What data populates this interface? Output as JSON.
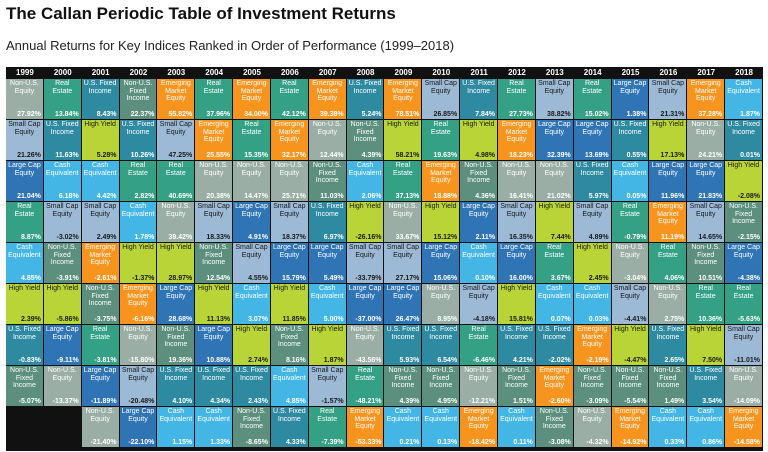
{
  "header": {
    "title": "The Callan Periodic Table of Investment Returns",
    "subtitle": "Annual Returns for Key Indices Ranked in Order of Performance (1999–2018)"
  },
  "table": {
    "columns": [
      {
        "year": "1999",
        "cells": [
          [
            "Non-U.S. Equity",
            "27.92%",
            "#9aaea6"
          ],
          [
            "Small Cap Equity",
            "21.26%",
            "#9cbad6"
          ],
          [
            "Large Cap Equity",
            "21.04%",
            "#2f74b5"
          ],
          [
            "Real Estate",
            "8.87%",
            "#34a184"
          ],
          [
            "Cash Equivalent",
            "4.85%",
            "#43b6e6"
          ],
          [
            "High Yield",
            "2.39%",
            "#b9d437"
          ],
          [
            "U.S. Fixed Income",
            "-0.83%",
            "#2e8aa0"
          ],
          [
            "Non-U.S. Fixed Income",
            "-5.07%",
            "#5c8f7e"
          ],
          null
        ]
      },
      {
        "year": "2000",
        "cells": [
          [
            "Real Estate",
            "13.84%",
            "#34a184"
          ],
          [
            "U.S. Fixed Income",
            "11.63%",
            "#2e8aa0"
          ],
          [
            "Cash Equivalent",
            "6.18%",
            "#43b6e6"
          ],
          [
            "Small Cap Equity",
            "-3.02%",
            "#9cbad6"
          ],
          [
            "Non-U.S. Fixed Income",
            "-3.91%",
            "#5c8f7e"
          ],
          [
            "High Yield",
            "-5.86%",
            "#b9d437"
          ],
          [
            "Large Cap Equity",
            "-9.11%",
            "#2f74b5"
          ],
          [
            "Non-U.S. Equity",
            "-13.37%",
            "#9aaea6"
          ],
          null
        ]
      },
      {
        "year": "2001",
        "cells": [
          [
            "U.S. Fixed Income",
            "8.43%",
            "#2e8aa0"
          ],
          [
            "High Yield",
            "5.28%",
            "#b9d437"
          ],
          [
            "Cash Equivalent",
            "4.42%",
            "#43b6e6"
          ],
          [
            "Small Cap Equity",
            "2.49%",
            "#9cbad6"
          ],
          [
            "Emerging Market Equity",
            "-2.61%",
            "#f7941e"
          ],
          [
            "Non-U.S. Fixed Income",
            "-3.75%",
            "#5c8f7e"
          ],
          [
            "Real Estate",
            "-3.81%",
            "#34a184"
          ],
          [
            "Large Cap Equity",
            "-11.89%",
            "#2f74b5"
          ],
          [
            "Non-U.S. Equity",
            "-21.40%",
            "#9aaea6"
          ]
        ]
      },
      {
        "year": "2002",
        "cells": [
          [
            "Non-U.S. Fixed Income",
            "22.37%",
            "#5c8f7e"
          ],
          [
            "U.S. Fixed Income",
            "10.26%",
            "#2e8aa0"
          ],
          [
            "Real Estate",
            "2.82%",
            "#34a184"
          ],
          [
            "Cash Equivalent",
            "1.78%",
            "#43b6e6"
          ],
          [
            "High Yield",
            "-1.37%",
            "#b9d437"
          ],
          [
            "Emerging Market Equity",
            "-6.16%",
            "#f7941e"
          ],
          [
            "Non-U.S. Equity",
            "-15.80%",
            "#9aaea6"
          ],
          [
            "Small Cap Equity",
            "-20.48%",
            "#9cbad6"
          ],
          [
            "Large Cap Equity",
            "-22.10%",
            "#2f74b5"
          ]
        ]
      },
      {
        "year": "2003",
        "cells": [
          [
            "Emerging Market Equity",
            "55.82%",
            "#f7941e"
          ],
          [
            "Small Cap Equity",
            "47.25%",
            "#9cbad6"
          ],
          [
            "Real Estate",
            "40.69%",
            "#34a184"
          ],
          [
            "Non-U.S. Equity",
            "39.42%",
            "#9aaea6"
          ],
          [
            "High Yield",
            "28.97%",
            "#b9d437"
          ],
          [
            "Large Cap Equity",
            "28.68%",
            "#2f74b5"
          ],
          [
            "Non-U.S. Fixed Income",
            "19.36%",
            "#5c8f7e"
          ],
          [
            "U.S. Fixed Income",
            "4.10%",
            "#2e8aa0"
          ],
          [
            "Cash Equivalent",
            "1.15%",
            "#43b6e6"
          ]
        ]
      },
      {
        "year": "2004",
        "cells": [
          [
            "Real Estate",
            "37.96%",
            "#34a184"
          ],
          [
            "Emerging Market Equity",
            "25.55%",
            "#f7941e"
          ],
          [
            "Non-U.S. Equity",
            "20.38%",
            "#9aaea6"
          ],
          [
            "Small Cap Equity",
            "18.33%",
            "#9cbad6"
          ],
          [
            "Non-U.S. Fixed Income",
            "12.54%",
            "#5c8f7e"
          ],
          [
            "High Yield",
            "11.13%",
            "#b9d437"
          ],
          [
            "Large Cap Equity",
            "10.88%",
            "#2f74b5"
          ],
          [
            "U.S. Fixed Income",
            "4.34%",
            "#2e8aa0"
          ],
          [
            "Cash Equivalent",
            "1.33%",
            "#43b6e6"
          ]
        ]
      },
      {
        "year": "2005",
        "cells": [
          [
            "Emerging Market Equity",
            "34.00%",
            "#f7941e"
          ],
          [
            "Real Estate",
            "15.35%",
            "#34a184"
          ],
          [
            "Non-U.S. Equity",
            "14.47%",
            "#9aaea6"
          ],
          [
            "Large Cap Equity",
            "4.91%",
            "#2f74b5"
          ],
          [
            "Small Cap Equity",
            "4.55%",
            "#9cbad6"
          ],
          [
            "Cash Equivalent",
            "3.07%",
            "#43b6e6"
          ],
          [
            "High Yield",
            "2.74%",
            "#b9d437"
          ],
          [
            "U.S. Fixed Income",
            "2.43%",
            "#2e8aa0"
          ],
          [
            "Non-U.S. Fixed Income",
            "-8.65%",
            "#5c8f7e"
          ]
        ]
      },
      {
        "year": "2006",
        "cells": [
          [
            "Real Estate",
            "42.12%",
            "#34a184"
          ],
          [
            "Emerging Market Equity",
            "32.17%",
            "#f7941e"
          ],
          [
            "Non-U.S. Equity",
            "25.71%",
            "#9aaea6"
          ],
          [
            "Small Cap Equity",
            "18.37%",
            "#9cbad6"
          ],
          [
            "Large Cap Equity",
            "15.79%",
            "#2f74b5"
          ],
          [
            "High Yield",
            "11.85%",
            "#b9d437"
          ],
          [
            "Non-U.S. Fixed Income",
            "8.16%",
            "#5c8f7e"
          ],
          [
            "Cash Equivalent",
            "4.85%",
            "#43b6e6"
          ],
          [
            "U.S. Fixed Income",
            "4.33%",
            "#2e8aa0"
          ]
        ]
      },
      {
        "year": "2007",
        "cells": [
          [
            "Emerging Market Equity",
            "39.38%",
            "#f7941e"
          ],
          [
            "Non-U.S. Equity",
            "12.44%",
            "#9aaea6"
          ],
          [
            "Non-U.S. Fixed Income",
            "11.03%",
            "#5c8f7e"
          ],
          [
            "U.S. Fixed Income",
            "6.97%",
            "#2e8aa0"
          ],
          [
            "Large Cap Equity",
            "5.49%",
            "#2f74b5"
          ],
          [
            "Cash Equivalent",
            "5.00%",
            "#43b6e6"
          ],
          [
            "High Yield",
            "1.87%",
            "#b9d437"
          ],
          [
            "Small Cap Equity",
            "-1.57%",
            "#9cbad6"
          ],
          [
            "Real Estate",
            "-7.39%",
            "#34a184"
          ]
        ]
      },
      {
        "year": "2008",
        "cells": [
          [
            "U.S. Fixed Income",
            "5.24%",
            "#2e8aa0"
          ],
          [
            "Non-U.S. Fixed Income",
            "4.39%",
            "#5c8f7e"
          ],
          [
            "Cash Equivalent",
            "2.06%",
            "#43b6e6"
          ],
          [
            "High Yield",
            "-26.16%",
            "#b9d437"
          ],
          [
            "Small Cap Equity",
            "-33.79%",
            "#9cbad6"
          ],
          [
            "Large Cap Equity",
            "-37.00%",
            "#2f74b5"
          ],
          [
            "Non-U.S. Equity",
            "-43.56%",
            "#9aaea6"
          ],
          [
            "Real Estate",
            "-48.21%",
            "#34a184"
          ],
          [
            "Emerging Market Equity",
            "-53.33%",
            "#f7941e"
          ]
        ]
      },
      {
        "year": "2009",
        "cells": [
          [
            "Emerging Market Equity",
            "78.51%",
            "#f7941e"
          ],
          [
            "High Yield",
            "58.21%",
            "#b9d437"
          ],
          [
            "Real Estate",
            "37.13%",
            "#34a184"
          ],
          [
            "Non-U.S. Equity",
            "33.67%",
            "#9aaea6"
          ],
          [
            "Small Cap Equity",
            "27.17%",
            "#9cbad6"
          ],
          [
            "Large Cap Equity",
            "26.47%",
            "#2f74b5"
          ],
          [
            "U.S. Fixed Income",
            "5.93%",
            "#2e8aa0"
          ],
          [
            "Non-U.S. Fixed Income",
            "4.39%",
            "#5c8f7e"
          ],
          [
            "Cash Equivalent",
            "0.21%",
            "#43b6e6"
          ]
        ]
      },
      {
        "year": "2010",
        "cells": [
          [
            "Small Cap Equity",
            "26.85%",
            "#9cbad6"
          ],
          [
            "Real Estate",
            "19.63%",
            "#34a184"
          ],
          [
            "Emerging Market Equity",
            "18.88%",
            "#f7941e"
          ],
          [
            "High Yield",
            "15.12%",
            "#b9d437"
          ],
          [
            "Large Cap Equity",
            "15.06%",
            "#2f74b5"
          ],
          [
            "Non-U.S. Equity",
            "8.95%",
            "#9aaea6"
          ],
          [
            "U.S. Fixed Income",
            "6.54%",
            "#2e8aa0"
          ],
          [
            "Non-U.S. Fixed Income",
            "4.95%",
            "#5c8f7e"
          ],
          [
            "Cash Equivalent",
            "0.13%",
            "#43b6e6"
          ]
        ]
      },
      {
        "year": "2011",
        "cells": [
          [
            "U.S. Fixed Income",
            "7.84%",
            "#2e8aa0"
          ],
          [
            "High Yield",
            "4.98%",
            "#b9d437"
          ],
          [
            "Non-U.S. Fixed Income",
            "4.36%",
            "#5c8f7e"
          ],
          [
            "Large Cap Equity",
            "2.11%",
            "#2f74b5"
          ],
          [
            "Cash Equivalent",
            "0.10%",
            "#43b6e6"
          ],
          [
            "Small Cap Equity",
            "-4.18%",
            "#9cbad6"
          ],
          [
            "Real Estate",
            "-6.46%",
            "#34a184"
          ],
          [
            "Non-U.S. Equity",
            "-12.21%",
            "#9aaea6"
          ],
          [
            "Emerging Market Equity",
            "-18.42%",
            "#f7941e"
          ]
        ]
      },
      {
        "year": "2012",
        "cells": [
          [
            "Real Estate",
            "27.73%",
            "#34a184"
          ],
          [
            "Emerging Market Equity",
            "18.23%",
            "#f7941e"
          ],
          [
            "Non-U.S. Equity",
            "16.41%",
            "#9aaea6"
          ],
          [
            "Small Cap Equity",
            "16.35%",
            "#9cbad6"
          ],
          [
            "Large Cap Equity",
            "16.00%",
            "#2f74b5"
          ],
          [
            "High Yield",
            "15.81%",
            "#b9d437"
          ],
          [
            "U.S. Fixed Income",
            "4.21%",
            "#2e8aa0"
          ],
          [
            "Non-U.S. Fixed Income",
            "1.51%",
            "#5c8f7e"
          ],
          [
            "Cash Equivalent",
            "0.11%",
            "#43b6e6"
          ]
        ]
      },
      {
        "year": "2013",
        "cells": [
          [
            "Small Cap Equity",
            "38.82%",
            "#9cbad6"
          ],
          [
            "Large Cap Equity",
            "32.39%",
            "#2f74b5"
          ],
          [
            "Non-U.S. Equity",
            "21.02%",
            "#9aaea6"
          ],
          [
            "High Yield",
            "7.44%",
            "#b9d437"
          ],
          [
            "Real Estate",
            "3.67%",
            "#34a184"
          ],
          [
            "Cash Equivalent",
            "0.07%",
            "#43b6e6"
          ],
          [
            "U.S. Fixed Income",
            "-2.02%",
            "#2e8aa0"
          ],
          [
            "Emerging Market Equity",
            "-2.60%",
            "#f7941e"
          ],
          [
            "Non-U.S. Fixed Income",
            "-3.08%",
            "#5c8f7e"
          ]
        ]
      },
      {
        "year": "2014",
        "cells": [
          [
            "Real Estate",
            "15.02%",
            "#34a184"
          ],
          [
            "Large Cap Equity",
            "13.69%",
            "#2f74b5"
          ],
          [
            "U.S. Fixed Income",
            "5.97%",
            "#2e8aa0"
          ],
          [
            "Small Cap Equity",
            "4.89%",
            "#9cbad6"
          ],
          [
            "High Yield",
            "2.45%",
            "#b9d437"
          ],
          [
            "Cash Equivalent",
            "0.03%",
            "#43b6e6"
          ],
          [
            "Emerging Market Equity",
            "-2.19%",
            "#f7941e"
          ],
          [
            "Non-U.S. Fixed Income",
            "-3.09%",
            "#5c8f7e"
          ],
          [
            "Non-U.S. Equity",
            "-4.32%",
            "#9aaea6"
          ]
        ]
      },
      {
        "year": "2015",
        "cells": [
          [
            "Large Cap Equity",
            "1.38%",
            "#2f74b5"
          ],
          [
            "U.S. Fixed Income",
            "0.55%",
            "#2e8aa0"
          ],
          [
            "Cash Equivalent",
            "0.05%",
            "#43b6e6"
          ],
          [
            "Real Estate",
            "-0.79%",
            "#34a184"
          ],
          [
            "Non-U.S. Equity",
            "-3.04%",
            "#9aaea6"
          ],
          [
            "Small Cap Equity",
            "-4.41%",
            "#9cbad6"
          ],
          [
            "High Yield",
            "-4.47%",
            "#b9d437"
          ],
          [
            "Non-U.S. Fixed Income",
            "-5.54%",
            "#5c8f7e"
          ],
          [
            "Emerging Market Equity",
            "-14.92%",
            "#f7941e"
          ]
        ]
      },
      {
        "year": "2016",
        "cells": [
          [
            "Small Cap Equity",
            "21.31%",
            "#9cbad6"
          ],
          [
            "High Yield",
            "17.13%",
            "#b9d437"
          ],
          [
            "Large Cap Equity",
            "11.96%",
            "#2f74b5"
          ],
          [
            "Emerging Market Equity",
            "11.19%",
            "#f7941e"
          ],
          [
            "Real Estate",
            "4.06%",
            "#34a184"
          ],
          [
            "Non-U.S. Equity",
            "2.75%",
            "#9aaea6"
          ],
          [
            "U.S. Fixed Income",
            "2.65%",
            "#2e8aa0"
          ],
          [
            "Non-U.S. Fixed Income",
            "1.49%",
            "#5c8f7e"
          ],
          [
            "Cash Equivalent",
            "0.33%",
            "#43b6e6"
          ]
        ]
      },
      {
        "year": "2017",
        "cells": [
          [
            "Emerging Market Equity",
            "37.28%",
            "#f7941e"
          ],
          [
            "Non-U.S. Equity",
            "24.21%",
            "#9aaea6"
          ],
          [
            "Large Cap Equity",
            "21.83%",
            "#2f74b5"
          ],
          [
            "Small Cap Equity",
            "14.65%",
            "#9cbad6"
          ],
          [
            "Non-U.S. Fixed Income",
            "10.51%",
            "#5c8f7e"
          ],
          [
            "Real Estate",
            "10.36%",
            "#34a184"
          ],
          [
            "High Yield",
            "7.50%",
            "#b9d437"
          ],
          [
            "U.S. Fixed Income",
            "3.54%",
            "#2e8aa0"
          ],
          [
            "Cash Equivalent",
            "0.86%",
            "#43b6e6"
          ]
        ]
      },
      {
        "year": "2018",
        "cells": [
          [
            "Cash Equivalent",
            "1.87%",
            "#43b6e6"
          ],
          [
            "U.S. Fixed Income",
            "0.01%",
            "#2e8aa0"
          ],
          [
            "High Yield",
            "-2.08%",
            "#b9d437"
          ],
          [
            "Non-U.S. Fixed Income",
            "-2.15%",
            "#5c8f7e"
          ],
          [
            "Large Cap Equity",
            "-4.38%",
            "#2f74b5"
          ],
          [
            "Real Estate",
            "-5.63%",
            "#34a184"
          ],
          [
            "Small Cap Equity",
            "-11.01%",
            "#9cbad6"
          ],
          [
            "Non-U.S. Equity",
            "-14.09%",
            "#9aaea6"
          ],
          [
            "Emerging Market Equity",
            "-14.58%",
            "#f7941e"
          ]
        ]
      }
    ]
  }
}
